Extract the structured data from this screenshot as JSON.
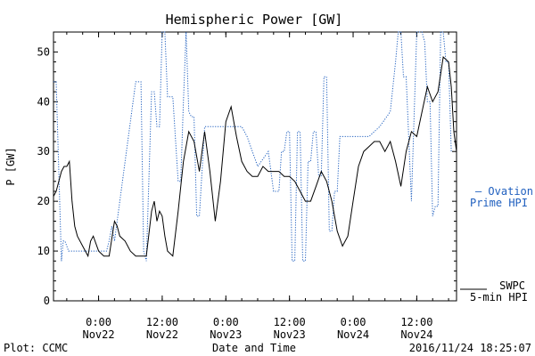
{
  "chart_data": {
    "type": "line",
    "title": "Hemispheric Power [GW]",
    "xlabel": "Date and Time",
    "ylabel": "P [GW]",
    "ylim": [
      0,
      54
    ],
    "y_ticks": [
      0,
      10,
      20,
      30,
      40,
      50
    ],
    "x_ticks": [
      {
        "time": "2016-11-22 00:00",
        "line1": "0:00",
        "line2": "Nov22"
      },
      {
        "time": "2016-11-22 12:00",
        "line1": "12:00",
        "line2": "Nov22"
      },
      {
        "time": "2016-11-23 00:00",
        "line1": "0:00",
        "line2": "Nov23"
      },
      {
        "time": "2016-11-23 12:00",
        "line1": "12:00",
        "line2": "Nov23"
      },
      {
        "time": "2016-11-24 00:00",
        "line1": "0:00",
        "line2": "Nov24"
      },
      {
        "time": "2016-11-24 12:00",
        "line1": "12:00",
        "line2": "Nov24"
      }
    ],
    "xlim": [
      "2016-11-21 15:30",
      "2016-11-24 19:30"
    ],
    "series": [
      {
        "name": "Ovation Prime HPI",
        "legend_line1": "— Ovation",
        "legend_line2": "Prime HPI",
        "color": "#1f5fbf",
        "style": "dotted",
        "x": [
          "2016-11-21 15:30",
          "2016-11-21 16:00",
          "2016-11-21 17:00",
          "2016-11-21 17:20",
          "2016-11-21 17:40",
          "2016-11-21 18:20",
          "2016-11-21 18:40",
          "2016-11-21 19:00",
          "2016-11-22 01:00",
          "2016-11-22 01:30",
          "2016-11-22 02:00",
          "2016-11-22 02:30",
          "2016-11-22 03:00",
          "2016-11-22 07:00",
          "2016-11-22 08:00",
          "2016-11-22 08:30",
          "2016-11-22 09:00",
          "2016-11-22 09:30",
          "2016-11-22 10:00",
          "2016-11-22 10:30",
          "2016-11-22 11:00",
          "2016-11-22 11:30",
          "2016-11-22 12:00",
          "2016-11-22 12:30",
          "2016-11-22 13:00",
          "2016-11-22 13:30",
          "2016-11-22 14:00",
          "2016-11-22 15:00",
          "2016-11-22 15:30",
          "2016-11-22 16:00",
          "2016-11-22 16:30",
          "2016-11-22 17:00",
          "2016-11-22 17:30",
          "2016-11-22 18:00",
          "2016-11-22 18:30",
          "2016-11-22 19:00",
          "2016-11-22 20:00",
          "2016-11-22 20:30",
          "2016-11-22 21:00",
          "2016-11-22 21:30",
          "2016-11-23 03:00",
          "2016-11-23 04:00",
          "2016-11-23 06:00",
          "2016-11-23 08:00",
          "2016-11-23 09:00",
          "2016-11-23 10:00",
          "2016-11-23 10:30",
          "2016-11-23 11:00",
          "2016-11-23 11:30",
          "2016-11-23 12:00",
          "2016-11-23 12:30",
          "2016-11-23 13:00",
          "2016-11-23 13:30",
          "2016-11-23 14:00",
          "2016-11-23 14:30",
          "2016-11-23 15:00",
          "2016-11-23 15:30",
          "2016-11-23 16:00",
          "2016-11-23 16:30",
          "2016-11-23 17:00",
          "2016-11-23 17:30",
          "2016-11-23 18:00",
          "2016-11-23 18:30",
          "2016-11-23 19:00",
          "2016-11-23 19:30",
          "2016-11-23 20:00",
          "2016-11-23 20:30",
          "2016-11-23 21:00",
          "2016-11-23 21:30",
          "2016-11-23 22:00",
          "2016-11-24 03:00",
          "2016-11-24 05:00",
          "2016-11-24 07:00",
          "2016-11-24 08:00",
          "2016-11-24 08:30",
          "2016-11-24 09:00",
          "2016-11-24 09:30",
          "2016-11-24 10:00",
          "2016-11-24 11:00",
          "2016-11-24 12:00",
          "2016-11-24 13:00",
          "2016-11-24 13:30",
          "2016-11-24 14:00",
          "2016-11-24 14:30",
          "2016-11-24 15:00",
          "2016-11-24 15:30",
          "2016-11-24 16:00",
          "2016-11-24 16:30",
          "2016-11-24 17:00",
          "2016-11-24 17:30",
          "2016-11-24 18:00",
          "2016-11-24 18:30"
        ],
        "y": [
          44,
          44,
          8,
          12,
          12,
          10,
          10,
          10,
          10,
          10,
          12,
          15,
          12,
          44,
          44,
          10,
          8,
          25,
          42,
          42,
          35,
          35,
          54,
          54,
          41,
          41,
          41,
          24,
          24,
          40,
          54,
          38,
          37,
          37,
          17,
          17,
          35,
          35,
          35,
          35,
          35,
          33,
          27,
          30,
          22,
          22,
          30,
          30,
          34,
          34,
          8,
          8,
          34,
          34,
          8,
          8,
          28,
          28,
          34,
          34,
          25,
          25,
          45,
          45,
          14,
          14,
          22,
          22,
          33,
          33,
          33,
          35,
          38,
          48,
          54,
          54,
          45,
          45,
          20,
          54,
          54,
          52,
          40,
          40,
          17,
          19,
          19,
          54,
          54,
          48,
          48,
          30
        ]
      },
      {
        "name": "SWPC 5-min HPI",
        "legend_line1": "SWPC",
        "legend_line2": "5-min HPI",
        "color": "#000000",
        "style": "solid",
        "x": [
          "2016-11-21 15:30",
          "2016-11-21 16:00",
          "2016-11-21 17:00",
          "2016-11-21 17:30",
          "2016-11-21 18:00",
          "2016-11-21 18:30",
          "2016-11-21 19:00",
          "2016-11-21 19:30",
          "2016-11-21 20:00",
          "2016-11-21 21:00",
          "2016-11-21 22:00",
          "2016-11-21 22:30",
          "2016-11-21 23:00",
          "2016-11-22 00:00",
          "2016-11-22 01:00",
          "2016-11-22 02:00",
          "2016-11-22 03:00",
          "2016-11-22 03:30",
          "2016-11-22 04:00",
          "2016-11-22 05:00",
          "2016-11-22 06:00",
          "2016-11-22 07:00",
          "2016-11-22 08:00",
          "2016-11-22 09:00",
          "2016-11-22 10:00",
          "2016-11-22 10:30",
          "2016-11-22 11:00",
          "2016-11-22 11:30",
          "2016-11-22 12:00",
          "2016-11-22 12:30",
          "2016-11-22 13:00",
          "2016-11-22 14:00",
          "2016-11-22 15:00",
          "2016-11-22 16:00",
          "2016-11-22 17:00",
          "2016-11-22 18:00",
          "2016-11-22 19:00",
          "2016-11-22 20:00",
          "2016-11-22 21:00",
          "2016-11-22 22:00",
          "2016-11-22 23:00",
          "2016-11-23 00:00",
          "2016-11-23 01:00",
          "2016-11-23 02:00",
          "2016-11-23 03:00",
          "2016-11-23 04:00",
          "2016-11-23 05:00",
          "2016-11-23 06:00",
          "2016-11-23 07:00",
          "2016-11-23 08:00",
          "2016-11-23 09:00",
          "2016-11-23 10:00",
          "2016-11-23 11:00",
          "2016-11-23 12:00",
          "2016-11-23 13:00",
          "2016-11-23 14:00",
          "2016-11-23 15:00",
          "2016-11-23 16:00",
          "2016-11-23 17:00",
          "2016-11-23 18:00",
          "2016-11-23 19:00",
          "2016-11-23 20:00",
          "2016-11-23 21:00",
          "2016-11-23 22:00",
          "2016-11-23 23:00",
          "2016-11-24 00:00",
          "2016-11-24 01:00",
          "2016-11-24 02:00",
          "2016-11-24 03:00",
          "2016-11-24 04:00",
          "2016-11-24 05:00",
          "2016-11-24 06:00",
          "2016-11-24 07:00",
          "2016-11-24 08:00",
          "2016-11-24 09:00",
          "2016-11-24 10:00",
          "2016-11-24 11:00",
          "2016-11-24 12:00",
          "2016-11-24 13:00",
          "2016-11-24 14:00",
          "2016-11-24 15:00",
          "2016-11-24 16:00",
          "2016-11-24 17:00",
          "2016-11-24 18:00",
          "2016-11-24 18:30",
          "2016-11-24 19:00",
          "2016-11-24 19:30"
        ],
        "y": [
          21,
          22,
          26,
          27,
          27,
          28,
          20,
          15,
          13,
          11,
          9,
          12,
          13,
          10,
          9,
          9,
          16,
          15,
          13,
          12,
          10,
          9,
          9,
          9,
          18,
          20,
          16,
          18,
          17,
          13,
          10,
          9,
          18,
          28,
          34,
          32,
          26,
          34,
          26,
          16,
          24,
          36,
          39,
          33,
          28,
          26,
          25,
          25,
          27,
          26,
          26,
          26,
          25,
          25,
          24,
          22,
          20,
          20,
          23,
          26,
          24,
          20,
          14,
          11,
          13,
          20,
          27,
          30,
          31,
          32,
          32,
          30,
          32,
          28,
          23,
          30,
          34,
          33,
          38,
          43,
          40,
          42,
          49,
          48,
          43,
          34,
          30
        ]
      }
    ]
  },
  "footer": {
    "left": "Plot: CCMC",
    "right": "2016/11/24 18:25:07"
  }
}
